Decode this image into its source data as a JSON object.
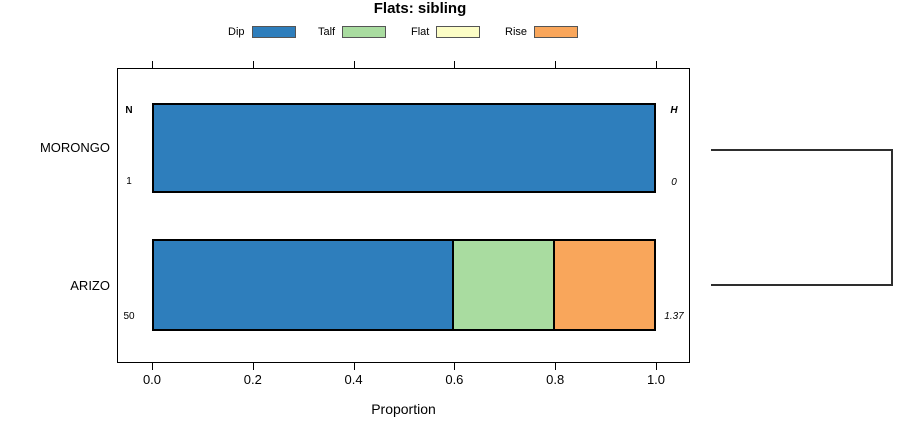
{
  "chart_data": {
    "type": "bar",
    "orientation": "horizontal-stacked",
    "title": "Flats: sibling",
    "categories": [
      "MORONGO",
      "ARIZO"
    ],
    "series": [
      {
        "name": "Dip",
        "color": "#2E7EBC",
        "values": [
          1.0,
          0.6
        ]
      },
      {
        "name": "Talf",
        "color": "#A9DCA0",
        "values": [
          0,
          0.2
        ]
      },
      {
        "name": "Flat",
        "color": "#FCFDC6",
        "values": [
          0,
          0
        ]
      },
      {
        "name": "Rise",
        "color": "#F9A65B",
        "values": [
          0,
          0.2
        ]
      }
    ],
    "xlabel": "Proportion",
    "xlim": [
      0,
      1
    ],
    "xtick_labels": [
      "0.0",
      "0.2",
      "0.4",
      "0.6",
      "0.8",
      "1.0"
    ],
    "legend_position": "top",
    "grid": false,
    "annotations": {
      "left_header": "N",
      "right_header": "H",
      "rows": [
        {
          "left": "1",
          "right": "0"
        },
        {
          "left": "50",
          "right": "1.37"
        }
      ]
    }
  }
}
